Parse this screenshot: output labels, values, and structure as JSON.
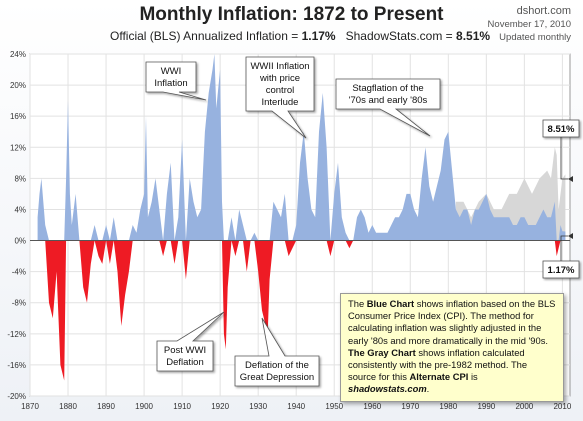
{
  "title": "Monthly Inflation: 1872 to Present",
  "subtitle": {
    "official_label": "Official (BLS) Annualized Inflation =",
    "official_value": "1.17%",
    "shadow_label": "ShadowStats.com =",
    "shadow_value": "8.51%"
  },
  "brand": {
    "site": "dshort.com",
    "date": "November 17, 2010",
    "updated": "Updated monthly"
  },
  "colors": {
    "blue": "#97b2df",
    "gray": "#d7d7d7",
    "red": "#ee1b24",
    "panel": "#ffffcc"
  },
  "callouts": {
    "wwi_inflation": [
      "WWI",
      "Inflation"
    ],
    "wwii": [
      "WWII Inflation",
      "with price",
      "control",
      "Interlude"
    ],
    "stagflation": [
      "Stagflation of the",
      "'70s and early '80s"
    ],
    "post_wwi": [
      "Post WWI",
      "Deflation"
    ],
    "depression": [
      "Deflation of the",
      "Great Depression"
    ],
    "shadow_value": "8.51%",
    "official_value": "1.17%"
  },
  "note": {
    "part1_prefix": "The ",
    "part1_bold": "Blue Chart",
    "part1_rest": " shows inflation based on the BLS Consumer Price Index (CPI). The method for calculating inflation was slightly adjusted in the early '80s and more  dramatically in the mid '90s.",
    "part2_bold": "The Gray Chart",
    "part2_rest": " shows inflation calculated consistently with the pre-1982 method.  The source for this ",
    "part2_bold2": "Alternate CPI",
    "part2_is": " is ",
    "part2_source": "shadowstats.com",
    "part2_end": "."
  },
  "chart_data": {
    "type": "area",
    "x_label": "",
    "y_label": "",
    "xlim": [
      1870,
      2012
    ],
    "ylim": [
      -20,
      24
    ],
    "x_ticks": [
      1870,
      1880,
      1890,
      1900,
      1910,
      1920,
      1930,
      1940,
      1950,
      1960,
      1970,
      1980,
      1990,
      2000,
      2010
    ],
    "y_ticks": [
      -20,
      -16,
      -12,
      -8,
      -4,
      0,
      4,
      8,
      12,
      16,
      20,
      24
    ],
    "y_tick_labels": [
      "-20%",
      "-16%",
      "-12%",
      "-8%",
      "-4%",
      "0%",
      "4%",
      "8%",
      "12%",
      "16%",
      "20%",
      "24%"
    ],
    "grid": true,
    "series": [
      {
        "key": "cpi",
        "x": [
          1872,
          1872.5,
          1873,
          1874,
          1875,
          1876,
          1877,
          1878,
          1879,
          1879.5,
          1880,
          1880.5,
          1881,
          1882,
          1883,
          1884,
          1885,
          1886,
          1887,
          1888,
          1889,
          1890,
          1891,
          1892,
          1893,
          1894,
          1895,
          1896,
          1897,
          1898,
          1899,
          1900,
          1900.5,
          1901,
          1902,
          1903,
          1904,
          1905,
          1906,
          1907,
          1908,
          1909,
          1910,
          1911,
          1912,
          1913,
          1914,
          1915,
          1916,
          1917,
          1918,
          1918.5,
          1919,
          1920,
          1920.5,
          1921,
          1921.5,
          1922,
          1923,
          1924,
          1925,
          1926,
          1927,
          1928,
          1929,
          1930,
          1931,
          1932,
          1932.5,
          1933,
          1934,
          1935,
          1936,
          1937,
          1938,
          1939,
          1940,
          1941,
          1942,
          1943,
          1944,
          1945,
          1946,
          1947,
          1948,
          1949,
          1950,
          1951,
          1952,
          1953,
          1954,
          1955,
          1956,
          1957,
          1958,
          1959,
          1960,
          1961,
          1962,
          1963,
          1964,
          1965,
          1966,
          1967,
          1968,
          1969,
          1970,
          1971,
          1972,
          1973,
          1974,
          1975,
          1976,
          1977,
          1978,
          1979,
          1980,
          1981,
          1982,
          1983,
          1984,
          1985,
          1986,
          1987,
          1988,
          1989,
          1990,
          1991,
          1992,
          1993,
          1994,
          1995,
          1996,
          1997,
          1998,
          1999,
          2000,
          2001,
          2002,
          2003,
          2004,
          2005,
          2006,
          2007,
          2008,
          2008.5,
          2009,
          2009.5,
          2010,
          2010.8
        ],
        "values": [
          3,
          6,
          8,
          2,
          -8,
          -10,
          -4,
          -16,
          -18,
          8,
          18,
          6,
          2,
          6,
          0,
          -6,
          -8,
          -3,
          2,
          -2,
          -3,
          2,
          -3,
          3,
          -4,
          -11,
          -7,
          -4,
          2,
          1,
          4,
          6,
          16,
          3,
          5,
          8,
          4,
          -2,
          6,
          10,
          -3,
          3,
          13,
          -5,
          8,
          5,
          3,
          4,
          14,
          19,
          22,
          24,
          17,
          22,
          5,
          -12,
          -14,
          -6,
          3,
          -2,
          4,
          2,
          -4,
          0,
          1,
          -4,
          -9,
          -11,
          -12,
          -5,
          5,
          4,
          3,
          6,
          -2,
          -1,
          2,
          10,
          14,
          8,
          4,
          3,
          14,
          19,
          12,
          -2,
          6,
          10,
          3,
          1,
          -1,
          0,
          3,
          4,
          3,
          1,
          2,
          1,
          1,
          1,
          1,
          2,
          3,
          3,
          4,
          6,
          6,
          4,
          3,
          8,
          12,
          7,
          5,
          7,
          9,
          13,
          14,
          9,
          4,
          3,
          4,
          4,
          2,
          4,
          4,
          5,
          6,
          4,
          3,
          3,
          3,
          3,
          3,
          2,
          2,
          3,
          3,
          2,
          2,
          2,
          3,
          4,
          3,
          3,
          5,
          -2,
          -1,
          2,
          1.2,
          1.17
        ]
      },
      {
        "key": "alternate",
        "x": [
          1982,
          1984,
          1986,
          1988,
          1990,
          1992,
          1994,
          1996,
          1998,
          2000,
          2002,
          2004,
          2006,
          2007,
          2008,
          2008.5,
          2009,
          2009.5,
          2010,
          2010.8
        ],
        "values": [
          5,
          5,
          3,
          5,
          6,
          4,
          4,
          6,
          6,
          8,
          6,
          8,
          9,
          8,
          12,
          11,
          4,
          6,
          8,
          8.51
        ]
      }
    ]
  }
}
